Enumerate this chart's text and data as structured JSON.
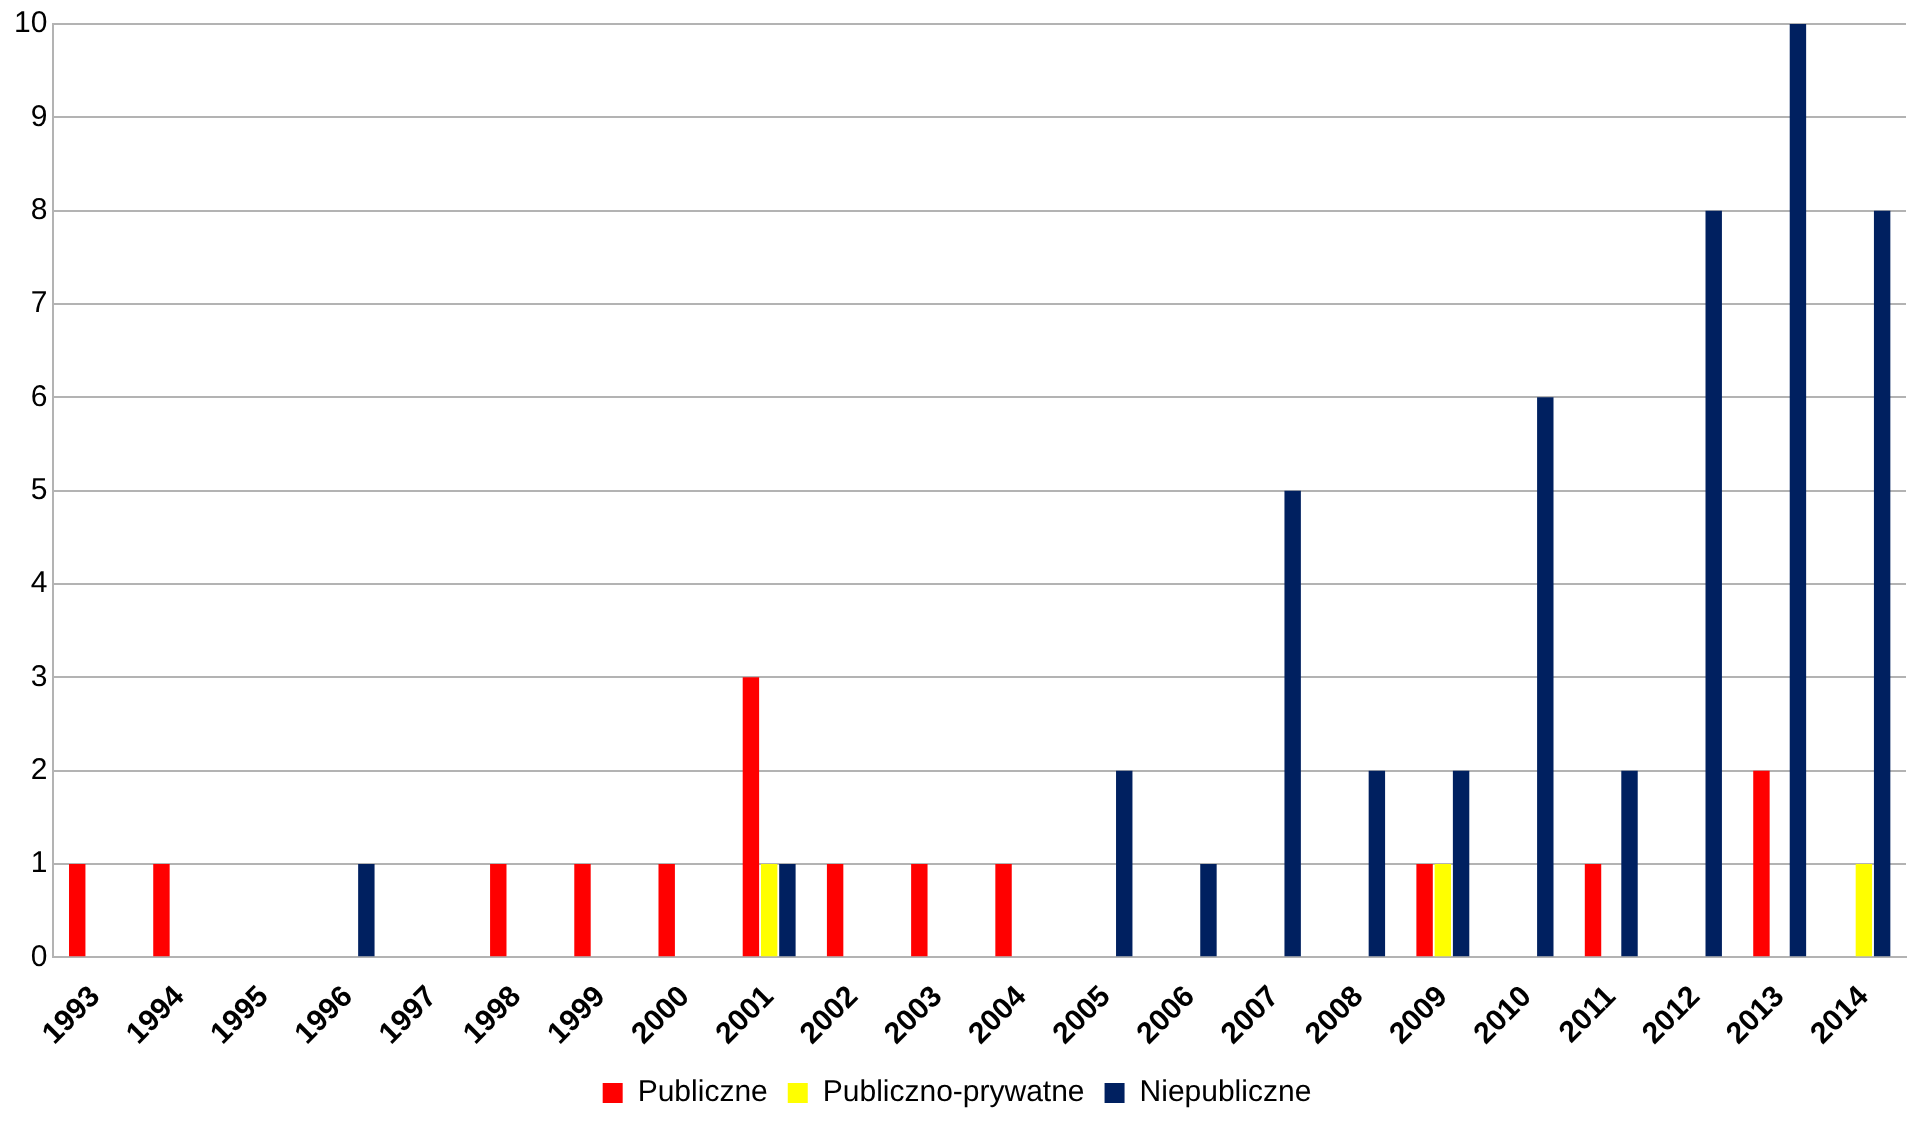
{
  "chart_data": {
    "type": "bar",
    "categories": [
      "1993",
      "1994",
      "1995",
      "1996",
      "1997",
      "1998",
      "1999",
      "2000",
      "2001",
      "2002",
      "2003",
      "2004",
      "2005",
      "2006",
      "2007",
      "2008",
      "2009",
      "2010",
      "2011",
      "2012",
      "2013",
      "2014"
    ],
    "series": [
      {
        "name": "Publiczne",
        "color": "#ff0000",
        "values": [
          1,
          1,
          0,
          0,
          0,
          1,
          1,
          1,
          3,
          1,
          1,
          1,
          0,
          0,
          0,
          0,
          1,
          0,
          1,
          0,
          2,
          0
        ]
      },
      {
        "name": "Publiczno-prywatne",
        "color": "#ffff00",
        "values": [
          0,
          0,
          0,
          0,
          0,
          0,
          0,
          0,
          1,
          0,
          0,
          0,
          0,
          0,
          0,
          0,
          1,
          0,
          0,
          0,
          0,
          1
        ]
      },
      {
        "name": "Niepubliczne",
        "color": "#002060",
        "values": [
          0,
          0,
          0,
          1,
          0,
          0,
          0,
          0,
          1,
          0,
          0,
          0,
          2,
          1,
          5,
          2,
          2,
          6,
          2,
          8,
          10,
          8
        ]
      }
    ],
    "ylim": [
      0,
      10
    ],
    "yticks": [
      0,
      1,
      2,
      3,
      4,
      5,
      6,
      7,
      8,
      9,
      10
    ],
    "grid": "y",
    "legend": "bottom"
  }
}
